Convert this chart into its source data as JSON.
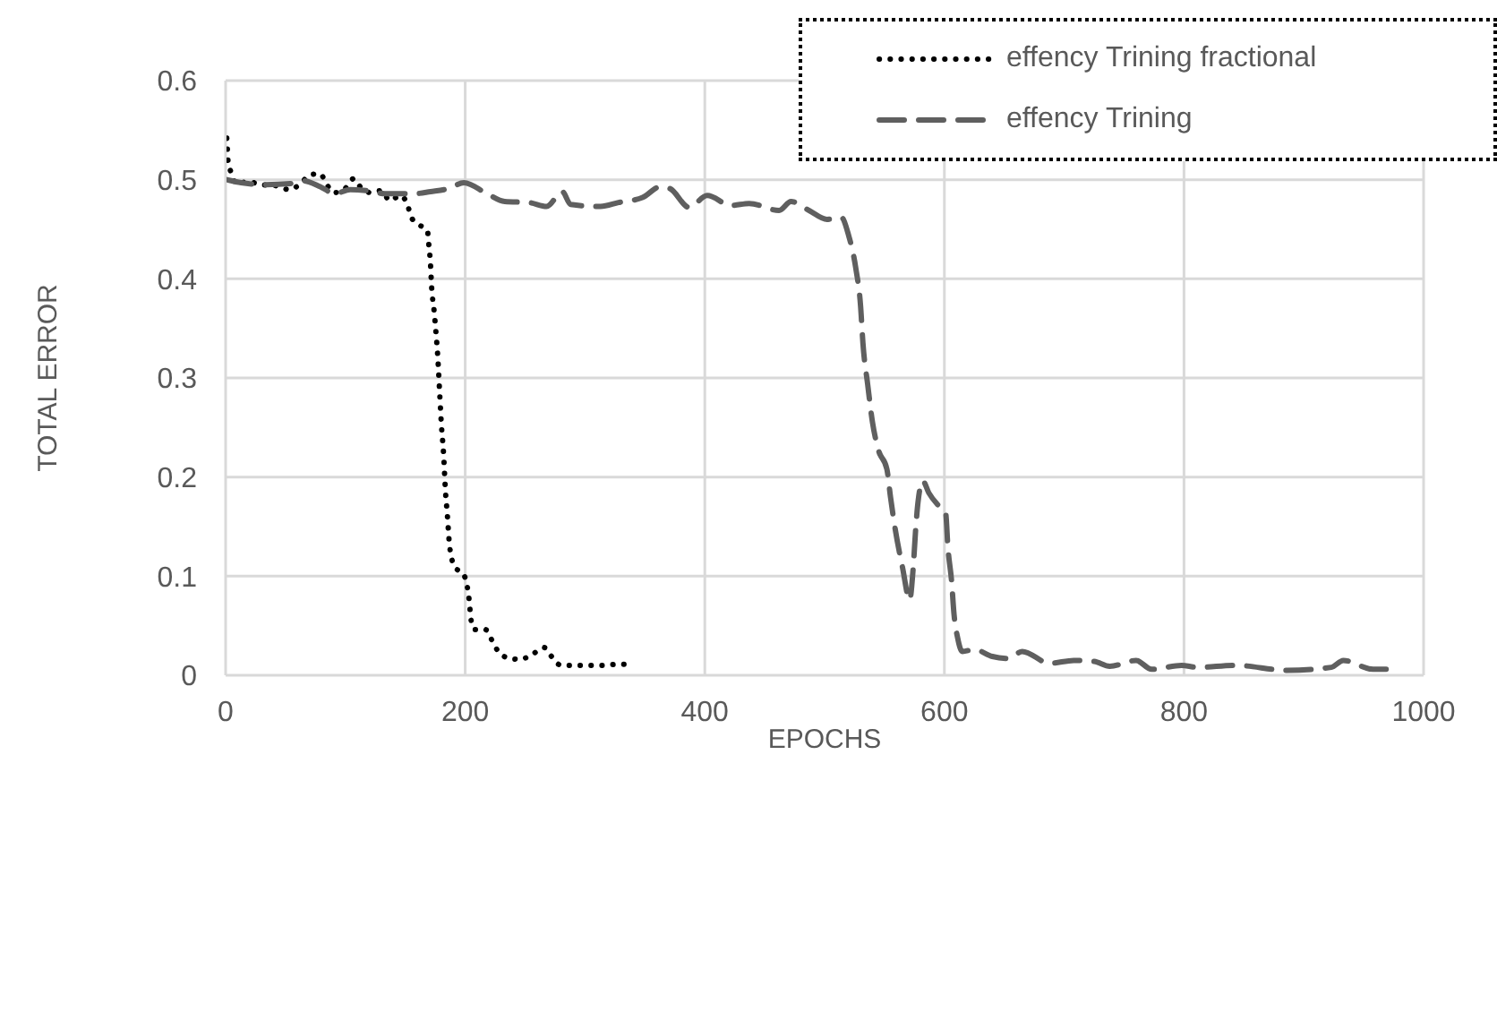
{
  "chart_data": {
    "type": "line",
    "xlabel": "EPOCHS",
    "ylabel": "TOTAL ERROR",
    "xlim": [
      0,
      1000
    ],
    "xticks": [
      0,
      200,
      400,
      600,
      800,
      1000
    ],
    "ylim": [
      0,
      0.6
    ],
    "yticks": [
      0,
      0.1,
      0.2,
      0.3,
      0.4,
      0.5,
      0.6
    ],
    "grid": true,
    "legend": "top right",
    "marker": "none",
    "series": [
      {
        "name": "effency Trining fractional",
        "color": "#000000",
        "line_style": "dotted",
        "x": [
          1,
          1.5,
          2,
          4.7,
          8.7,
          18.8,
          30,
          41.6,
          53,
          62.6,
          70.6,
          79,
          84,
          90.7,
          99.7,
          106.7,
          113,
          121,
          130,
          137,
          146,
          152,
          155,
          161,
          168.5,
          169.5,
          171,
          172,
          174,
          175.5,
          177,
          178.5,
          180,
          182,
          183.5,
          185,
          187,
          191,
          199,
          203,
          205,
          208,
          217,
          222,
          227,
          234.5,
          246,
          257,
          266,
          272,
          280,
          292,
          303,
          315,
          327,
          338
        ],
        "values": [
          0.542,
          0.53,
          0.519,
          0.507,
          0.496,
          0.498,
          0.495,
          0.494,
          0.49,
          0.496,
          0.505,
          0.506,
          0.496,
          0.487,
          0.491,
          0.501,
          0.492,
          0.487,
          0.489,
          0.479,
          0.484,
          0.474,
          0.462,
          0.455,
          0.448,
          0.436,
          0.415,
          0.391,
          0.368,
          0.347,
          0.323,
          0.289,
          0.255,
          0.222,
          0.186,
          0.163,
          0.13,
          0.11,
          0.101,
          0.079,
          0.055,
          0.046,
          0.046,
          0.036,
          0.025,
          0.018,
          0.016,
          0.022,
          0.028,
          0.019,
          0.01,
          0.01,
          0.01,
          0.01,
          0.011,
          0.011
        ]
      },
      {
        "name": "effency Trining",
        "color": "#5f5f5f",
        "line_style": "dashed",
        "x": [
          1,
          13,
          33,
          54,
          64,
          79,
          91,
          104,
          118,
          133,
          158,
          171,
          186,
          199,
          218,
          233,
          253,
          268,
          281,
          288,
          313,
          328,
          348,
          363,
          371,
          387,
          402,
          422,
          437,
          462,
          472,
          487,
          502,
          514,
          520,
          526,
          530,
          532,
          536,
          540,
          545,
          552,
          555,
          559,
          565,
          571,
          574,
          576,
          578,
          582,
          587,
          596,
          601,
          603,
          606,
          608,
          611,
          615,
          625,
          640,
          653,
          665,
          688,
          708,
          725,
          738,
          760,
          773,
          798,
          811,
          843,
          886,
          923,
          933,
          958,
          973
        ],
        "values": [
          0.5,
          0.497,
          0.495,
          0.496,
          0.499,
          0.493,
          0.486,
          0.49,
          0.489,
          0.486,
          0.486,
          0.488,
          0.491,
          0.497,
          0.486,
          0.478,
          0.477,
          0.473,
          0.488,
          0.475,
          0.473,
          0.477,
          0.482,
          0.493,
          0.491,
          0.472,
          0.484,
          0.474,
          0.476,
          0.469,
          0.478,
          0.469,
          0.46,
          0.462,
          0.444,
          0.411,
          0.373,
          0.335,
          0.293,
          0.255,
          0.227,
          0.208,
          0.18,
          0.147,
          0.109,
          0.076,
          0.109,
          0.147,
          0.175,
          0.196,
          0.184,
          0.17,
          0.164,
          0.128,
          0.095,
          0.062,
          0.038,
          0.024,
          0.026,
          0.019,
          0.017,
          0.024,
          0.012,
          0.015,
          0.014,
          0.009,
          0.015,
          0.006,
          0.01,
          0.008,
          0.01,
          0.005,
          0.008,
          0.015,
          0.006,
          0.006
        ]
      }
    ]
  }
}
